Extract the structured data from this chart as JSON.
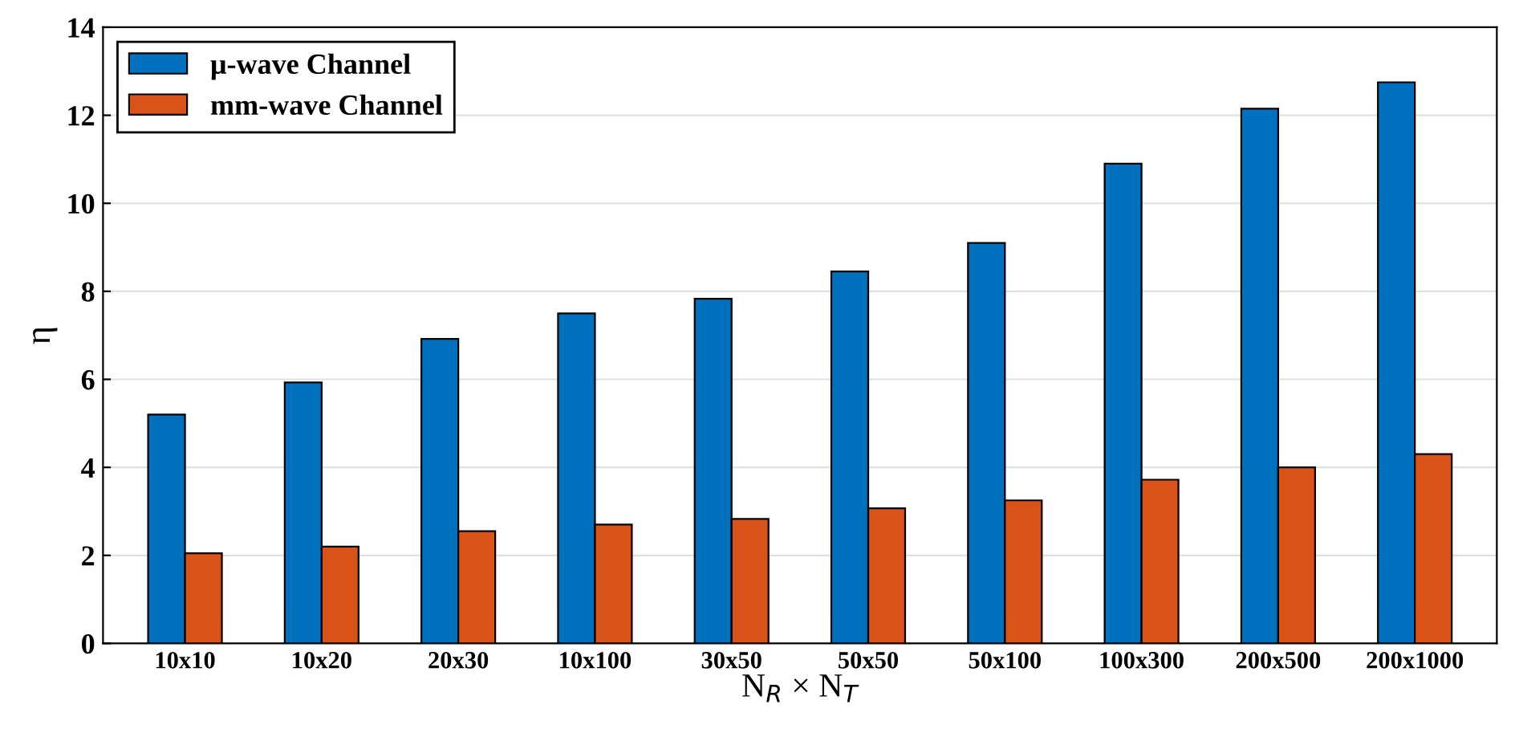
{
  "chart_data": {
    "type": "bar",
    "xlabel": "N$_{R}$ × N$_{T}$",
    "ylabel": "η",
    "categories": [
      "10x10",
      "10x20",
      "20x30",
      "10x100",
      "30x50",
      "50x50",
      "50x100",
      "100x300",
      "200x500",
      "200x1000"
    ],
    "series": [
      {
        "name": "μ-wave Channel",
        "color": "#0072bd",
        "values": [
          5.2,
          5.93,
          6.92,
          7.5,
          7.83,
          8.45,
          9.1,
          10.9,
          12.15,
          12.75
        ]
      },
      {
        "name": "mm-wave Channel",
        "color": "#d95319",
        "values": [
          2.05,
          2.2,
          2.55,
          2.7,
          2.83,
          3.07,
          3.25,
          3.72,
          4.0,
          4.3
        ]
      }
    ],
    "ylim": [
      0,
      14
    ],
    "yticks": [
      0,
      2,
      4,
      6,
      8,
      10,
      12,
      14
    ],
    "grid": "y",
    "legend": "top left"
  }
}
